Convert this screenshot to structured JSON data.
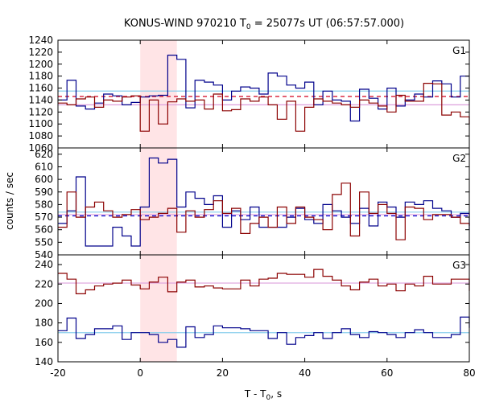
{
  "chart_data": {
    "type": "line",
    "title_main": "KONUS-WIND 970210 T",
    "title_sub": "0",
    "title_rest": " = 25077s UT (06:57:57.000)",
    "xlabel_main": "T - T",
    "xlabel_sub": "0",
    "xlabel_rest": ", s",
    "ylabel": "counts / sec",
    "xlim": [
      -20,
      80
    ],
    "xticks": [
      "-20",
      "0",
      "20",
      "40",
      "60",
      "80"
    ],
    "xtick_values": [
      -20,
      0,
      20,
      40,
      60,
      80
    ],
    "highlight_region": [
      0,
      8.9
    ],
    "colors": {
      "red_series": "#8b0000",
      "blue_series": "#00008b",
      "red_bg": "#d2001e",
      "blue_bg": "#0000cd",
      "red_level": "#dda0dd",
      "blue_level": "#87ceeb",
      "highlight": "#ffe4e6"
    },
    "bin_edges": [
      -20,
      -17.8,
      -15.6,
      -13.3,
      -11.1,
      -8.9,
      -6.7,
      -4.4,
      -2.2,
      0,
      2.2,
      4.4,
      6.7,
      8.9,
      11.1,
      13.3,
      15.6,
      17.8,
      20,
      22.2,
      24.4,
      26.7,
      28.9,
      31.1,
      33.3,
      35.6,
      37.8,
      40,
      42.2,
      44.4,
      46.7,
      48.9,
      51.1,
      53.3,
      55.6,
      57.8,
      60,
      62.2,
      64.4,
      66.7,
      68.9,
      71.1,
      73.3,
      75.6,
      77.8,
      80
    ],
    "panels": [
      {
        "label": "G1",
        "ylim": [
          1060,
          1240
        ],
        "yticks": [
          1060,
          1080,
          1100,
          1120,
          1140,
          1160,
          1180,
          1200,
          1220,
          1240
        ],
        "red_background_level": 1146,
        "blue_level": 1155,
        "pink_level": 1132,
        "red_series": [
          1135,
          1132,
          1142,
          1145,
          1128,
          1140,
          1138,
          1145,
          1147,
          1088,
          1140,
          1100,
          1137,
          1142,
          1138,
          1140,
          1125,
          1150,
          1122,
          1124,
          1142,
          1138,
          1145,
          1132,
          1108,
          1138,
          1088,
          1128,
          1142,
          1138,
          1135,
          1132,
          1128,
          1140,
          1135,
          1130,
          1120,
          1148,
          1138,
          1138,
          1168,
          1167,
          1115,
          1120,
          1112,
          1100
        ],
        "blue_series": [
          1140,
          1173,
          1130,
          1125,
          1135,
          1150,
          1147,
          1132,
          1136,
          1145,
          1147,
          1148,
          1215,
          1208,
          1127,
          1173,
          1170,
          1165,
          1140,
          1155,
          1162,
          1160,
          1150,
          1185,
          1180,
          1165,
          1160,
          1170,
          1132,
          1155,
          1140,
          1138,
          1105,
          1158,
          1143,
          1125,
          1160,
          1130,
          1140,
          1150,
          1145,
          1172,
          1167,
          1145,
          1180,
          1180
        ]
      },
      {
        "label": "G2",
        "ylim": [
          540,
          625
        ],
        "yticks": [
          540,
          550,
          560,
          570,
          580,
          590,
          600,
          610,
          620
        ],
        "blue_background_level": 571,
        "blue_level": 574,
        "pink_level": 572,
        "red_series": [
          562,
          590,
          570,
          578,
          582,
          575,
          570,
          572,
          576,
          568,
          570,
          573,
          577,
          558,
          575,
          570,
          576,
          583,
          573,
          577,
          557,
          565,
          570,
          562,
          578,
          565,
          578,
          570,
          568,
          560,
          588,
          597,
          555,
          590,
          573,
          580,
          573,
          552,
          578,
          577,
          568,
          572,
          572,
          570,
          565,
          563
        ],
        "blue_series": [
          565,
          575,
          602,
          547,
          547,
          547,
          562,
          555,
          547,
          578,
          617,
          613,
          616,
          578,
          590,
          585,
          580,
          587,
          562,
          575,
          568,
          578,
          562,
          562,
          562,
          570,
          577,
          568,
          565,
          580,
          575,
          570,
          565,
          577,
          563,
          582,
          578,
          570,
          582,
          580,
          583,
          577,
          575,
          570,
          573,
          560
        ]
      },
      {
        "label": "G3",
        "ylim": [
          140,
          250
        ],
        "yticks": [
          140,
          160,
          180,
          200,
          220,
          240
        ],
        "red_level": 221,
        "blue_level": 170,
        "red_series": [
          231,
          225,
          210,
          214,
          218,
          220,
          221,
          224,
          219,
          215,
          222,
          227,
          212,
          222,
          224,
          217,
          218,
          216,
          215,
          215,
          224,
          218,
          225,
          226,
          231,
          230,
          230,
          227,
          235,
          228,
          224,
          218,
          214,
          222,
          225,
          218,
          220,
          213,
          220,
          218,
          228,
          220,
          220,
          225,
          225,
          213
        ],
        "blue_series": [
          172,
          185,
          164,
          168,
          174,
          174,
          177,
          163,
          170,
          170,
          168,
          160,
          163,
          155,
          176,
          165,
          168,
          177,
          175,
          175,
          174,
          172,
          172,
          164,
          170,
          158,
          165,
          167,
          170,
          164,
          170,
          174,
          168,
          165,
          171,
          170,
          168,
          165,
          170,
          173,
          170,
          165,
          165,
          168,
          186,
          175
        ]
      }
    ]
  }
}
